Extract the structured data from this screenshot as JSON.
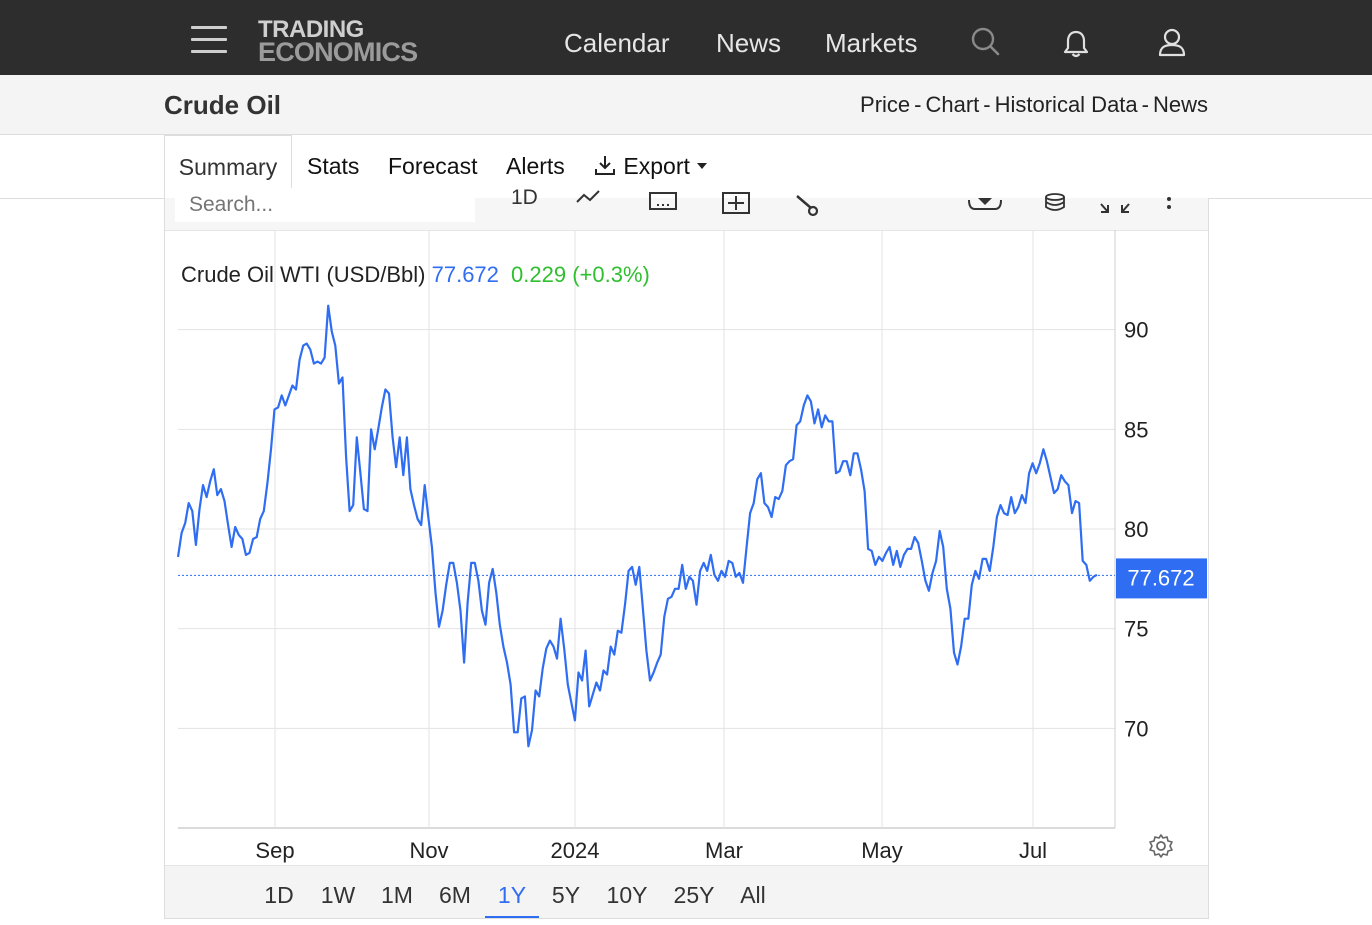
{
  "header": {
    "logo_line1": "TRADING",
    "logo_line2": "ECONOMICS",
    "nav": [
      "Calendar",
      "News",
      "Markets"
    ]
  },
  "page": {
    "title": "Crude Oil",
    "breadcrumbs": [
      "Price",
      "Chart",
      "Historical Data",
      "News"
    ]
  },
  "tabs": [
    "Summary",
    "Stats",
    "Forecast",
    "Alerts",
    "Export"
  ],
  "toolbar": {
    "search_placeholder": "Search...",
    "interval": "1D"
  },
  "legend": {
    "series": "Crude Oil WTI (USD/Bbl)",
    "last": "77.672",
    "change": "0.229 (+0.3%)"
  },
  "price_tag": "77.672",
  "ranges": [
    "1D",
    "1W",
    "1M",
    "6M",
    "1Y",
    "5Y",
    "10Y",
    "25Y",
    "All"
  ],
  "active_range": "1Y",
  "colors": {
    "line": "#2f6df2",
    "up": "#2fbf2f",
    "header": "#2d2d2d"
  },
  "chart_data": {
    "type": "line",
    "title": "",
    "xlabel": "",
    "ylabel": "",
    "x_ticks": [
      "Sep",
      "Nov",
      "2024",
      "Mar",
      "May",
      "Jul"
    ],
    "y_ticks": [
      70,
      75,
      80,
      85,
      90
    ],
    "ylim": [
      65,
      95
    ],
    "last_value": 77.672,
    "grid": true,
    "series": [
      {
        "values": [
          78.6,
          79.8,
          80.3,
          81.3,
          80.9,
          79.2,
          81.0,
          82.2,
          81.6,
          82.4,
          83.0,
          81.7,
          82.0,
          81.4,
          80.2,
          79.1,
          80.1,
          79.7,
          79.5,
          78.7,
          78.8,
          79.5,
          79.6,
          80.5,
          80.9,
          82.3,
          84.0,
          86.0,
          86.1,
          86.7,
          86.2,
          86.7,
          87.2,
          87.0,
          88.5,
          89.2,
          89.3,
          89.0,
          88.3,
          88.4,
          88.3,
          88.6,
          91.2,
          89.9,
          89.2,
          87.3,
          87.6,
          83.6,
          80.9,
          81.2,
          84.6,
          82.8,
          81.0,
          80.9,
          85.0,
          84.0,
          85.0,
          86.1,
          87.0,
          86.8,
          84.6,
          83.1,
          84.6,
          82.7,
          84.6,
          82.0,
          81.2,
          80.5,
          80.2,
          82.2,
          80.6,
          79.1,
          76.8,
          75.1,
          75.9,
          77.2,
          78.3,
          78.3,
          77.3,
          75.9,
          73.3,
          76.3,
          78.3,
          78.3,
          77.4,
          75.9,
          75.2,
          77.3,
          78.0,
          76.8,
          75.2,
          74.1,
          73.3,
          72.2,
          69.8,
          69.8,
          71.5,
          71.6,
          69.1,
          69.9,
          71.9,
          71.6,
          73.0,
          74.0,
          74.4,
          74.1,
          73.5,
          75.5,
          74.0,
          72.2,
          71.3,
          70.4,
          72.8,
          72.4,
          73.9,
          71.1,
          71.7,
          72.3,
          71.9,
          72.9,
          72.7,
          74.1,
          73.7,
          74.9,
          74.8,
          76.2,
          77.9,
          78.1,
          77.2,
          78.1,
          76.0,
          73.9,
          72.4,
          72.8,
          73.3,
          73.7,
          75.6,
          76.5,
          76.6,
          77.0,
          77.0,
          78.2,
          77.0,
          77.6,
          77.4,
          76.2,
          77.9,
          78.3,
          77.9,
          78.7,
          77.7,
          77.4,
          77.9,
          77.6,
          78.4,
          78.3,
          77.6,
          77.8,
          77.3,
          79.1,
          80.8,
          81.3,
          82.5,
          82.8,
          81.3,
          81.1,
          80.6,
          81.6,
          81.5,
          81.9,
          83.2,
          83.4,
          83.5,
          85.2,
          85.4,
          86.2,
          86.7,
          86.4,
          85.3,
          86.0,
          85.1,
          85.7,
          85.4,
          85.4,
          82.8,
          82.9,
          83.4,
          83.4,
          82.7,
          83.8,
          83.8,
          83.0,
          81.9,
          79.0,
          78.9,
          78.2,
          78.6,
          78.4,
          78.8,
          79.1,
          78.2,
          78.9,
          78.1,
          78.7,
          79.0,
          79.0,
          79.6,
          79.3,
          78.4,
          77.4,
          76.9,
          77.8,
          78.4,
          79.9,
          79.1,
          77.0,
          76.0,
          73.8,
          73.2,
          74.1,
          75.5,
          75.5,
          77.2,
          77.9,
          77.5,
          78.5,
          78.5,
          77.9,
          79.1,
          80.6,
          81.2,
          80.8,
          80.7,
          81.6,
          80.8,
          81.1,
          81.7,
          81.3,
          82.8,
          83.3,
          82.8,
          83.3,
          84.0,
          83.4,
          82.6,
          81.8,
          82.0,
          82.7,
          82.4,
          82.2,
          80.8,
          81.4,
          81.3,
          78.4,
          78.2,
          77.4,
          77.6,
          77.7
        ]
      }
    ]
  }
}
